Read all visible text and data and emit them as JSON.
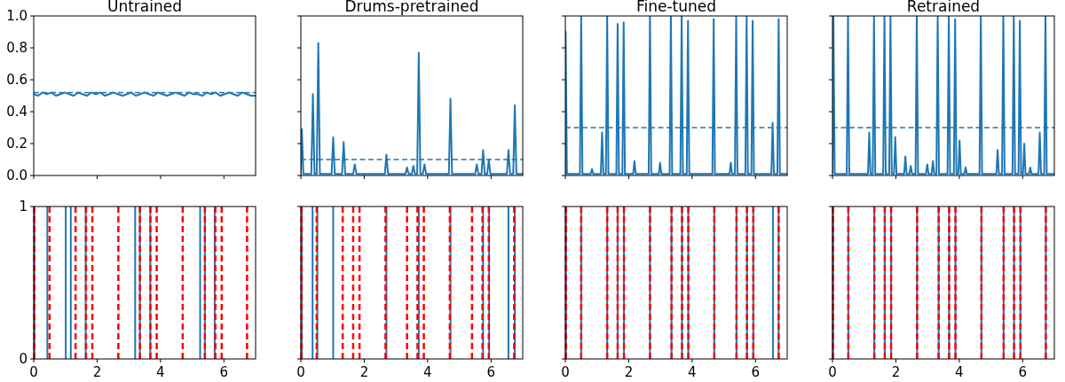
{
  "chart_data": [
    {
      "type": "line",
      "title": "Untrained",
      "xlim": [
        0,
        7
      ],
      "xticks": [
        0,
        2,
        4,
        6
      ],
      "ylim": [
        0,
        1
      ],
      "yticks": [
        {
          "value": 0,
          "label": "0.0"
        },
        0.2,
        0.4,
        0.6,
        0.8,
        {
          "value": 1,
          "label": "1.0"
        }
      ],
      "tick_labels": "y",
      "line_style": "solid",
      "series": [
        {
          "color": "#1f77b4",
          "x": [
            0,
            0.14,
            0.28,
            0.42,
            0.56,
            0.7,
            0.84,
            0.98,
            1.12,
            1.26,
            1.4,
            1.54,
            1.68,
            1.82,
            1.96,
            2.1,
            2.24,
            2.38,
            2.52,
            2.66,
            2.8,
            2.94,
            3.08,
            3.22,
            3.36,
            3.5,
            3.64,
            3.78,
            3.92,
            4.06,
            4.2,
            4.34,
            4.48,
            4.62,
            4.76,
            4.9,
            5.04,
            5.18,
            5.32,
            5.46,
            5.6,
            5.74,
            5.88,
            6.02,
            6.16,
            6.3,
            6.44,
            6.58,
            6.72,
            6.86,
            7
          ],
          "values": [
            0.51,
            0.5,
            0.52,
            0.51,
            0.52,
            0.5,
            0.51,
            0.52,
            0.51,
            0.5,
            0.52,
            0.51,
            0.5,
            0.52,
            0.51,
            0.52,
            0.5,
            0.51,
            0.52,
            0.51,
            0.5,
            0.51,
            0.52,
            0.5,
            0.51,
            0.52,
            0.51,
            0.5,
            0.52,
            0.51,
            0.5,
            0.51,
            0.52,
            0.51,
            0.5,
            0.52,
            0.51,
            0.51,
            0.5,
            0.52,
            0.51,
            0.52,
            0.5,
            0.51,
            0.52,
            0.51,
            0.5,
            0.52,
            0.51,
            0.5,
            0.5
          ]
        }
      ],
      "ref_lines": [
        {
          "axis": "y",
          "value": 0.52,
          "color": "#1f77b4",
          "line_style": "dashed"
        }
      ]
    },
    {
      "type": "line",
      "title": "Drums-pretrained",
      "xlim": [
        0,
        7
      ],
      "xticks": [
        0,
        2,
        4,
        6
      ],
      "ylim": [
        0,
        1
      ],
      "yticks": [
        0,
        0.2,
        0.4,
        0.6,
        0.8,
        1
      ],
      "tick_labels": false,
      "line_style": "solid",
      "series": [
        {
          "color": "#1f77b4",
          "x": [
            0,
            0.03,
            0.08,
            0.33,
            0.38,
            0.43,
            0.5,
            0.55,
            0.6,
            0.97,
            1.02,
            1.07,
            1.3,
            1.35,
            1.4,
            1.65,
            1.7,
            1.75,
            2.65,
            2.7,
            2.75,
            3.3,
            3.35,
            3.4,
            3.5,
            3.55,
            3.6,
            3.67,
            3.72,
            3.77,
            3.85,
            3.9,
            3.95,
            4.67,
            4.72,
            4.77,
            5.5,
            5.55,
            5.6,
            5.7,
            5.75,
            5.8,
            5.88,
            5.93,
            5.98,
            6.5,
            6.55,
            6.6,
            6.7,
            6.75,
            6.8,
            7
          ],
          "values": [
            0.01,
            0.29,
            0.01,
            0.01,
            0.51,
            0.01,
            0.01,
            0.83,
            0.01,
            0.01,
            0.24,
            0.01,
            0.01,
            0.21,
            0.01,
            0.01,
            0.07,
            0.01,
            0.01,
            0.13,
            0.01,
            0.01,
            0.05,
            0.01,
            0.01,
            0.06,
            0.01,
            0.01,
            0.77,
            0.01,
            0.01,
            0.07,
            0.01,
            0.01,
            0.48,
            0.01,
            0.01,
            0.07,
            0.01,
            0.01,
            0.16,
            0.01,
            0.01,
            0.1,
            0.01,
            0.01,
            0.16,
            0.01,
            0.01,
            0.44,
            0.01,
            0.01
          ]
        }
      ],
      "ref_lines": [
        {
          "axis": "y",
          "value": 0.1,
          "color": "#1f77b4",
          "line_style": "dashed"
        }
      ]
    },
    {
      "type": "line",
      "title": "Fine-tuned",
      "xlim": [
        0,
        7
      ],
      "xticks": [
        0,
        2,
        4,
        6
      ],
      "ylim": [
        0,
        1
      ],
      "yticks": [
        0,
        0.2,
        0.4,
        0.6,
        0.8,
        1
      ],
      "tick_labels": false,
      "line_style": "solid",
      "series": [
        {
          "color": "#1f77b4",
          "x": [
            0,
            0.01,
            0.05,
            0.46,
            0.5,
            0.54,
            0.8,
            0.84,
            0.88,
            1.12,
            1.16,
            1.2,
            1.28,
            1.32,
            1.36,
            1.61,
            1.65,
            1.69,
            1.8,
            1.84,
            1.88,
            2.14,
            2.18,
            2.22,
            2.63,
            2.67,
            2.71,
            2.95,
            2.99,
            3.03,
            3.29,
            3.33,
            3.37,
            3.63,
            3.67,
            3.71,
            3.83,
            3.87,
            3.91,
            4.64,
            4.68,
            4.72,
            5.18,
            5.22,
            5.26,
            5.35,
            5.39,
            5.43,
            5.68,
            5.72,
            5.76,
            5.87,
            5.91,
            5.95,
            6.5,
            6.54,
            6.58,
            6.69,
            6.73,
            6.77,
            7
          ],
          "values": [
            0.01,
            0.9,
            0.01,
            0.01,
            1,
            0.01,
            0.01,
            0.04,
            0.01,
            0.01,
            0.27,
            0.01,
            0.01,
            1,
            0.01,
            0.01,
            0.95,
            0.01,
            0.01,
            0.96,
            0.01,
            0.01,
            0.09,
            0.01,
            0.01,
            1,
            0.01,
            0.01,
            0.08,
            0.01,
            0.01,
            1,
            0.01,
            0.01,
            1,
            0.01,
            0.01,
            0.97,
            0.01,
            0.01,
            0.98,
            0.01,
            0.01,
            0.08,
            0.01,
            0.01,
            1,
            0.01,
            0.01,
            1,
            0.01,
            0.01,
            0.97,
            0.01,
            0.01,
            0.33,
            0.01,
            0.01,
            0.98,
            0.01,
            0.01
          ]
        }
      ],
      "ref_lines": [
        {
          "axis": "y",
          "value": 0.3,
          "color": "#1f77b4",
          "line_style": "dashed"
        }
      ]
    },
    {
      "type": "line",
      "title": "Retrained",
      "xlim": [
        0,
        7
      ],
      "xticks": [
        0,
        2,
        4,
        6
      ],
      "ylim": [
        0,
        1
      ],
      "yticks": [
        0,
        0.2,
        0.4,
        0.6,
        0.8,
        1
      ],
      "tick_labels": false,
      "line_style": "solid",
      "series": [
        {
          "color": "#1f77b4",
          "x": [
            0,
            0.03,
            0.07,
            0.45,
            0.49,
            0.53,
            1.12,
            1.16,
            1.2,
            1.27,
            1.31,
            1.35,
            1.6,
            1.64,
            1.68,
            1.79,
            1.83,
            1.87,
            1.94,
            1.98,
            2.02,
            2.26,
            2.3,
            2.34,
            2.43,
            2.47,
            2.51,
            2.62,
            2.66,
            2.7,
            2.95,
            2.99,
            3.03,
            3.13,
            3.17,
            3.21,
            3.28,
            3.32,
            3.36,
            3.63,
            3.67,
            3.71,
            3.83,
            3.87,
            3.91,
            3.97,
            4.01,
            4.05,
            4.16,
            4.2,
            4.24,
            4.64,
            4.68,
            4.72,
            5.17,
            5.21,
            5.25,
            5.35,
            5.39,
            5.43,
            5.68,
            5.72,
            5.76,
            5.87,
            5.91,
            5.95,
            6.01,
            6.05,
            6.09,
            6.2,
            6.24,
            6.28,
            6.5,
            6.54,
            6.58,
            6.68,
            6.72,
            6.76,
            7
          ],
          "values": [
            0.01,
            1,
            0.01,
            0.01,
            1,
            0.01,
            0.01,
            0.27,
            0.01,
            0.01,
            1,
            0.01,
            0.01,
            1,
            0.01,
            0.01,
            1,
            0.01,
            0.01,
            0.24,
            0.01,
            0.01,
            0.12,
            0.01,
            0.01,
            0.06,
            0.01,
            0.01,
            1,
            0.01,
            0.01,
            0.07,
            0.01,
            0.01,
            0.09,
            0.01,
            0.01,
            1,
            0.01,
            0.01,
            1,
            0.01,
            0.01,
            0.98,
            0.01,
            0.01,
            0.22,
            0.01,
            0.01,
            0.05,
            0.01,
            0.01,
            1,
            0.01,
            0.01,
            0.16,
            0.01,
            0.01,
            1,
            0.01,
            0.01,
            1,
            0.01,
            0.01,
            0.97,
            0.01,
            0.01,
            0.2,
            0.01,
            0.01,
            0.05,
            0.01,
            0.01,
            0.27,
            0.01,
            0.01,
            1,
            0.01,
            0.01
          ]
        }
      ],
      "ref_lines": [
        {
          "axis": "y",
          "value": 0.3,
          "color": "#1f77b4",
          "line_style": "dashed"
        }
      ]
    },
    {
      "type": "line",
      "xlim": [
        0,
        7
      ],
      "xticks": [
        0,
        2,
        4,
        6
      ],
      "ylim": [
        0,
        1
      ],
      "yticks": [
        0,
        1
      ],
      "ref_lines": [
        {
          "axis": "x",
          "value": 0.02,
          "color": "#1f77b4",
          "line_style": "solid"
        },
        {
          "axis": "x",
          "value": 0.43,
          "color": "#1f77b4",
          "line_style": "solid"
        },
        {
          "axis": "x",
          "value": 1.01,
          "color": "#1f77b4",
          "line_style": "solid"
        },
        {
          "axis": "x",
          "value": 1.17,
          "color": "#1f77b4",
          "line_style": "solid"
        },
        {
          "axis": "x",
          "value": 1.64,
          "color": "#1f77b4",
          "line_style": "solid"
        },
        {
          "axis": "x",
          "value": 3.2,
          "color": "#1f77b4",
          "line_style": "solid"
        },
        {
          "axis": "x",
          "value": 3.35,
          "color": "#1f77b4",
          "line_style": "solid"
        },
        {
          "axis": "x",
          "value": 3.68,
          "color": "#1f77b4",
          "line_style": "solid"
        },
        {
          "axis": "x",
          "value": 5.25,
          "color": "#1f77b4",
          "line_style": "solid"
        },
        {
          "axis": "x",
          "value": 5.4,
          "color": "#1f77b4",
          "line_style": "solid"
        },
        {
          "axis": "x",
          "value": 5.71,
          "color": "#1f77b4",
          "line_style": "solid"
        },
        {
          "axis": "x",
          "value": 0.02,
          "color": "#ff0000",
          "line_style": "dashed"
        },
        {
          "axis": "x",
          "value": 0.5,
          "color": "#ff0000",
          "line_style": "dashed"
        },
        {
          "axis": "x",
          "value": 1.32,
          "color": "#ff0000",
          "line_style": "dashed"
        },
        {
          "axis": "x",
          "value": 1.65,
          "color": "#ff0000",
          "line_style": "dashed"
        },
        {
          "axis": "x",
          "value": 1.85,
          "color": "#ff0000",
          "line_style": "dashed"
        },
        {
          "axis": "x",
          "value": 2.67,
          "color": "#ff0000",
          "line_style": "dashed"
        },
        {
          "axis": "x",
          "value": 3.35,
          "color": "#ff0000",
          "line_style": "dashed"
        },
        {
          "axis": "x",
          "value": 3.68,
          "color": "#ff0000",
          "line_style": "dashed"
        },
        {
          "axis": "x",
          "value": 3.88,
          "color": "#ff0000",
          "line_style": "dashed"
        },
        {
          "axis": "x",
          "value": 4.7,
          "color": "#ff0000",
          "line_style": "dashed"
        },
        {
          "axis": "x",
          "value": 5.4,
          "color": "#ff0000",
          "line_style": "dashed"
        },
        {
          "axis": "x",
          "value": 5.73,
          "color": "#ff0000",
          "line_style": "dashed"
        },
        {
          "axis": "x",
          "value": 5.93,
          "color": "#ff0000",
          "line_style": "dashed"
        },
        {
          "axis": "x",
          "value": 6.73,
          "color": "#ff0000",
          "line_style": "dashed"
        }
      ]
    },
    {
      "type": "line",
      "xlim": [
        0,
        7
      ],
      "xticks": [
        0,
        2,
        4,
        6
      ],
      "ylim": [
        0,
        1
      ],
      "yticks": [
        0,
        1
      ],
      "tick_labels": "x",
      "ref_lines": [
        {
          "axis": "x",
          "value": 0.03,
          "color": "#1f77b4",
          "line_style": "solid"
        },
        {
          "axis": "x",
          "value": 0.37,
          "color": "#1f77b4",
          "line_style": "solid"
        },
        {
          "axis": "x",
          "value": 0.52,
          "color": "#1f77b4",
          "line_style": "solid"
        },
        {
          "axis": "x",
          "value": 1.02,
          "color": "#1f77b4",
          "line_style": "solid"
        },
        {
          "axis": "x",
          "value": 2.7,
          "color": "#1f77b4",
          "line_style": "solid"
        },
        {
          "axis": "x",
          "value": 3.72,
          "color": "#1f77b4",
          "line_style": "solid"
        },
        {
          "axis": "x",
          "value": 4.72,
          "color": "#1f77b4",
          "line_style": "solid"
        },
        {
          "axis": "x",
          "value": 5.75,
          "color": "#1f77b4",
          "line_style": "solid"
        },
        {
          "axis": "x",
          "value": 5.94,
          "color": "#1f77b4",
          "line_style": "solid"
        },
        {
          "axis": "x",
          "value": 6.55,
          "color": "#1f77b4",
          "line_style": "solid"
        },
        {
          "axis": "x",
          "value": 6.75,
          "color": "#1f77b4",
          "line_style": "solid"
        },
        {
          "axis": "x",
          "value": 0.02,
          "color": "#ff0000",
          "line_style": "dashed"
        },
        {
          "axis": "x",
          "value": 0.5,
          "color": "#ff0000",
          "line_style": "dashed"
        },
        {
          "axis": "x",
          "value": 1.32,
          "color": "#ff0000",
          "line_style": "dashed"
        },
        {
          "axis": "x",
          "value": 1.65,
          "color": "#ff0000",
          "line_style": "dashed"
        },
        {
          "axis": "x",
          "value": 1.85,
          "color": "#ff0000",
          "line_style": "dashed"
        },
        {
          "axis": "x",
          "value": 2.67,
          "color": "#ff0000",
          "line_style": "dashed"
        },
        {
          "axis": "x",
          "value": 3.35,
          "color": "#ff0000",
          "line_style": "dashed"
        },
        {
          "axis": "x",
          "value": 3.68,
          "color": "#ff0000",
          "line_style": "dashed"
        },
        {
          "axis": "x",
          "value": 3.88,
          "color": "#ff0000",
          "line_style": "dashed"
        },
        {
          "axis": "x",
          "value": 4.7,
          "color": "#ff0000",
          "line_style": "dashed"
        },
        {
          "axis": "x",
          "value": 5.4,
          "color": "#ff0000",
          "line_style": "dashed"
        },
        {
          "axis": "x",
          "value": 5.73,
          "color": "#ff0000",
          "line_style": "dashed"
        },
        {
          "axis": "x",
          "value": 5.93,
          "color": "#ff0000",
          "line_style": "dashed"
        },
        {
          "axis": "x",
          "value": 6.73,
          "color": "#ff0000",
          "line_style": "dashed"
        }
      ]
    },
    {
      "type": "line",
      "xlim": [
        0,
        7
      ],
      "xticks": [
        0,
        2,
        4,
        6
      ],
      "ylim": [
        0,
        1
      ],
      "yticks": [
        0,
        1
      ],
      "tick_labels": "x",
      "ref_lines": [
        {
          "axis": "x",
          "value": 0.02,
          "color": "#1f77b4",
          "line_style": "solid"
        },
        {
          "axis": "x",
          "value": 0.5,
          "color": "#1f77b4",
          "line_style": "solid"
        },
        {
          "axis": "x",
          "value": 1.32,
          "color": "#1f77b4",
          "line_style": "solid"
        },
        {
          "axis": "x",
          "value": 1.65,
          "color": "#1f77b4",
          "line_style": "solid"
        },
        {
          "axis": "x",
          "value": 1.85,
          "color": "#1f77b4",
          "line_style": "solid"
        },
        {
          "axis": "x",
          "value": 2.67,
          "color": "#1f77b4",
          "line_style": "solid"
        },
        {
          "axis": "x",
          "value": 3.35,
          "color": "#1f77b4",
          "line_style": "solid"
        },
        {
          "axis": "x",
          "value": 3.68,
          "color": "#1f77b4",
          "line_style": "solid"
        },
        {
          "axis": "x",
          "value": 3.88,
          "color": "#1f77b4",
          "line_style": "solid"
        },
        {
          "axis": "x",
          "value": 4.7,
          "color": "#1f77b4",
          "line_style": "solid"
        },
        {
          "axis": "x",
          "value": 5.4,
          "color": "#1f77b4",
          "line_style": "solid"
        },
        {
          "axis": "x",
          "value": 5.73,
          "color": "#1f77b4",
          "line_style": "solid"
        },
        {
          "axis": "x",
          "value": 5.93,
          "color": "#1f77b4",
          "line_style": "solid"
        },
        {
          "axis": "x",
          "value": 6.55,
          "color": "#1f77b4",
          "line_style": "solid"
        },
        {
          "axis": "x",
          "value": 6.73,
          "color": "#1f77b4",
          "line_style": "solid"
        },
        {
          "axis": "x",
          "value": 0.02,
          "color": "#ff0000",
          "line_style": "dashed"
        },
        {
          "axis": "x",
          "value": 0.5,
          "color": "#ff0000",
          "line_style": "dashed"
        },
        {
          "axis": "x",
          "value": 1.32,
          "color": "#ff0000",
          "line_style": "dashed"
        },
        {
          "axis": "x",
          "value": 1.65,
          "color": "#ff0000",
          "line_style": "dashed"
        },
        {
          "axis": "x",
          "value": 1.85,
          "color": "#ff0000",
          "line_style": "dashed"
        },
        {
          "axis": "x",
          "value": 2.67,
          "color": "#ff0000",
          "line_style": "dashed"
        },
        {
          "axis": "x",
          "value": 3.35,
          "color": "#ff0000",
          "line_style": "dashed"
        },
        {
          "axis": "x",
          "value": 3.68,
          "color": "#ff0000",
          "line_style": "dashed"
        },
        {
          "axis": "x",
          "value": 3.88,
          "color": "#ff0000",
          "line_style": "dashed"
        },
        {
          "axis": "x",
          "value": 4.7,
          "color": "#ff0000",
          "line_style": "dashed"
        },
        {
          "axis": "x",
          "value": 5.4,
          "color": "#ff0000",
          "line_style": "dashed"
        },
        {
          "axis": "x",
          "value": 5.73,
          "color": "#ff0000",
          "line_style": "dashed"
        },
        {
          "axis": "x",
          "value": 5.93,
          "color": "#ff0000",
          "line_style": "dashed"
        },
        {
          "axis": "x",
          "value": 6.73,
          "color": "#ff0000",
          "line_style": "dashed"
        }
      ]
    },
    {
      "type": "line",
      "xlim": [
        0,
        7
      ],
      "xticks": [
        0,
        2,
        4,
        6
      ],
      "ylim": [
        0,
        1
      ],
      "yticks": [
        0,
        1
      ],
      "tick_labels": "x",
      "ref_lines": [
        {
          "axis": "x",
          "value": 0.02,
          "color": "#1f77b4",
          "line_style": "solid"
        },
        {
          "axis": "x",
          "value": 0.5,
          "color": "#1f77b4",
          "line_style": "solid"
        },
        {
          "axis": "x",
          "value": 1.32,
          "color": "#1f77b4",
          "line_style": "solid"
        },
        {
          "axis": "x",
          "value": 1.65,
          "color": "#1f77b4",
          "line_style": "solid"
        },
        {
          "axis": "x",
          "value": 1.85,
          "color": "#1f77b4",
          "line_style": "solid"
        },
        {
          "axis": "x",
          "value": 2.67,
          "color": "#1f77b4",
          "line_style": "solid"
        },
        {
          "axis": "x",
          "value": 3.35,
          "color": "#1f77b4",
          "line_style": "solid"
        },
        {
          "axis": "x",
          "value": 3.68,
          "color": "#1f77b4",
          "line_style": "solid"
        },
        {
          "axis": "x",
          "value": 3.88,
          "color": "#1f77b4",
          "line_style": "solid"
        },
        {
          "axis": "x",
          "value": 4.7,
          "color": "#1f77b4",
          "line_style": "solid"
        },
        {
          "axis": "x",
          "value": 5.4,
          "color": "#1f77b4",
          "line_style": "solid"
        },
        {
          "axis": "x",
          "value": 5.73,
          "color": "#1f77b4",
          "line_style": "solid"
        },
        {
          "axis": "x",
          "value": 5.93,
          "color": "#1f77b4",
          "line_style": "solid"
        },
        {
          "axis": "x",
          "value": 6.73,
          "color": "#1f77b4",
          "line_style": "solid"
        },
        {
          "axis": "x",
          "value": 0.02,
          "color": "#ff0000",
          "line_style": "dashed"
        },
        {
          "axis": "x",
          "value": 0.5,
          "color": "#ff0000",
          "line_style": "dashed"
        },
        {
          "axis": "x",
          "value": 1.32,
          "color": "#ff0000",
          "line_style": "dashed"
        },
        {
          "axis": "x",
          "value": 1.65,
          "color": "#ff0000",
          "line_style": "dashed"
        },
        {
          "axis": "x",
          "value": 1.85,
          "color": "#ff0000",
          "line_style": "dashed"
        },
        {
          "axis": "x",
          "value": 2.67,
          "color": "#ff0000",
          "line_style": "dashed"
        },
        {
          "axis": "x",
          "value": 3.35,
          "color": "#ff0000",
          "line_style": "dashed"
        },
        {
          "axis": "x",
          "value": 3.68,
          "color": "#ff0000",
          "line_style": "dashed"
        },
        {
          "axis": "x",
          "value": 3.88,
          "color": "#ff0000",
          "line_style": "dashed"
        },
        {
          "axis": "x",
          "value": 4.7,
          "color": "#ff0000",
          "line_style": "dashed"
        },
        {
          "axis": "x",
          "value": 5.4,
          "color": "#ff0000",
          "line_style": "dashed"
        },
        {
          "axis": "x",
          "value": 5.73,
          "color": "#ff0000",
          "line_style": "dashed"
        },
        {
          "axis": "x",
          "value": 5.93,
          "color": "#ff0000",
          "line_style": "dashed"
        },
        {
          "axis": "x",
          "value": 6.73,
          "color": "#ff0000",
          "line_style": "dashed"
        }
      ]
    }
  ]
}
